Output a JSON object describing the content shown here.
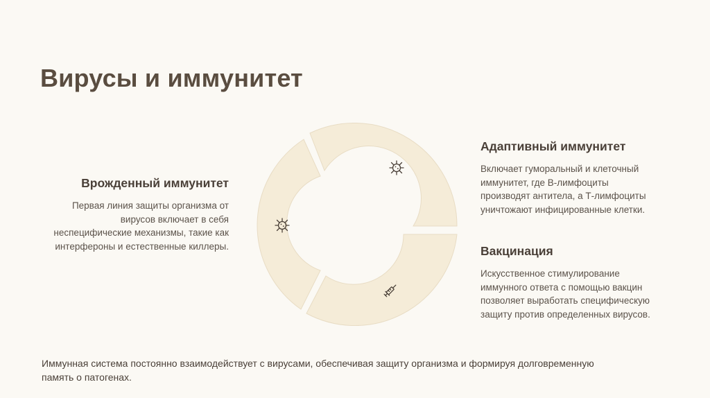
{
  "title": "Вирусы и иммунитет",
  "innate": {
    "heading": "Врожденный иммунитет",
    "text": "Первая линия защиты организма от вирусов включает в себя неспецифические механизмы, такие как интерфероны и естественные киллеры."
  },
  "adaptive": {
    "heading": "Адаптивный иммунитет",
    "text": "Включает гуморальный и клеточный иммунитет, где В-лимфоциты производят антитела, а Т-лимфоциты уничтожают инфицированные клетки."
  },
  "vaccination": {
    "heading": "Вакцинация",
    "text": "Искусственное стимулирование иммунного ответа с помощью вакцин позволяет выработать специфическую защиту против определенных вирусов."
  },
  "footer": "Иммунная система постоянно взаимодействует с вирусами, обеспечивая защиту организма и формируя долговременную память о патогенах.",
  "icons": [
    "virus-icon",
    "virus-icon",
    "syringe-icon"
  ],
  "colors": {
    "segment_fill": "#f5ecd8",
    "title": "#5a4d40",
    "background": "#fbf9f4"
  }
}
